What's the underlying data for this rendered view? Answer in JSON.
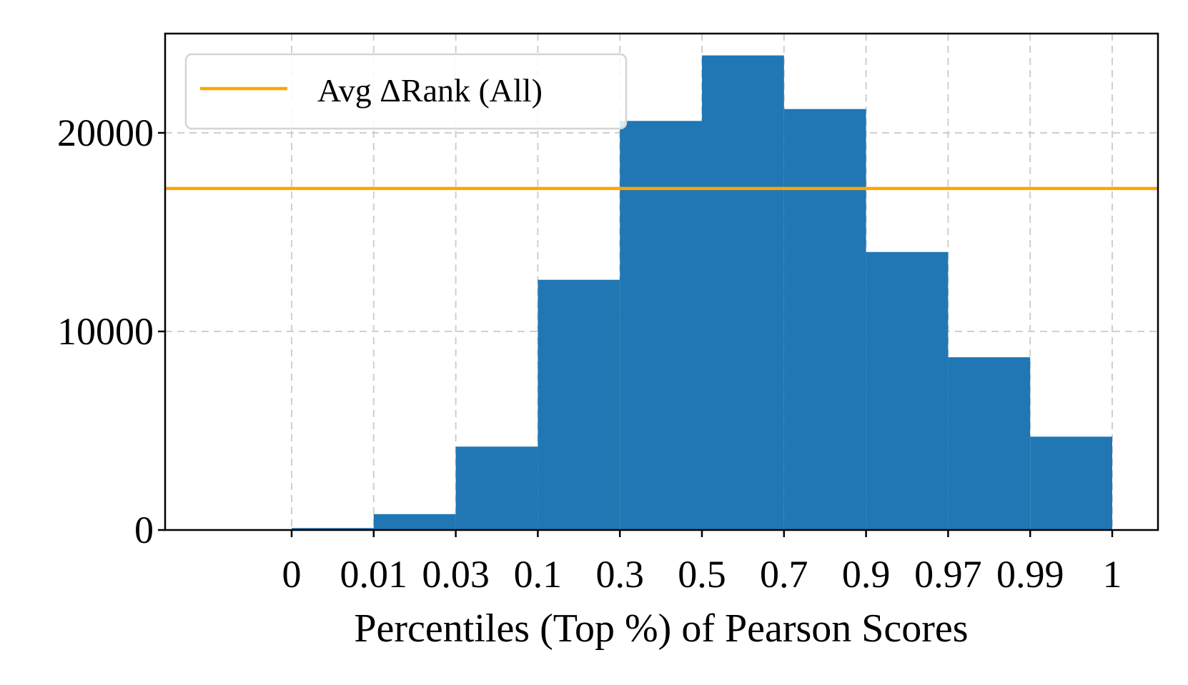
{
  "chart_data": {
    "type": "bar",
    "categories": [
      "0",
      "0.01",
      "0.03",
      "0.1",
      "0.3",
      "0.5",
      "0.7",
      "0.9",
      "0.97",
      "0.99",
      "1"
    ],
    "bins": [
      {
        "from": "0",
        "to": "0.01",
        "value": 100
      },
      {
        "from": "0.01",
        "to": "0.03",
        "value": 800
      },
      {
        "from": "0.03",
        "to": "0.1",
        "value": 4200
      },
      {
        "from": "0.1",
        "to": "0.3",
        "value": 12600
      },
      {
        "from": "0.3",
        "to": "0.5",
        "value": 20600
      },
      {
        "from": "0.5",
        "to": "0.7",
        "value": 23900
      },
      {
        "from": "0.7",
        "to": "0.9",
        "value": 21200
      },
      {
        "from": "0.9",
        "to": "0.97",
        "value": 14000
      },
      {
        "from": "0.97",
        "to": "0.99",
        "value": 8700
      },
      {
        "from": "0.99",
        "to": "1",
        "value": 4700
      }
    ],
    "reference_line": {
      "name": "Avg ΔRank (All)",
      "value": 17200,
      "color": "#ffa500"
    },
    "yticks": [
      0,
      10000,
      20000
    ],
    "ylim": [
      0,
      25000
    ],
    "xlabel": "Percentiles (Top %) of Pearson Scores",
    "ylabel": "",
    "bar_color": "#2077b4",
    "grid": true,
    "grid_style": "dashed",
    "legend_position": "top-left"
  }
}
